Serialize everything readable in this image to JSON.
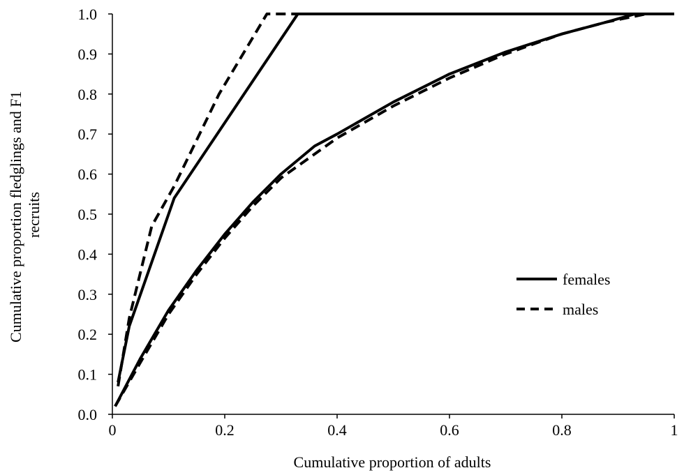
{
  "chart_data": {
    "type": "line",
    "title": "",
    "xlabel": "Cumulative proportion of adults",
    "ylabel": "Cumulative proportion fledglings and F1 recruits",
    "xlim": [
      0,
      1
    ],
    "ylim": [
      0,
      1
    ],
    "xticks": [
      0,
      0.2,
      0.4,
      0.6,
      0.8,
      1
    ],
    "xtick_labels": [
      "0",
      "0.2",
      "0.4",
      "0.6",
      "0.8",
      "1"
    ],
    "yticks": [
      0,
      0.1,
      0.2,
      0.3,
      0.4,
      0.5,
      0.6,
      0.7,
      0.8,
      0.9,
      1.0
    ],
    "ytick_labels": [
      "0.0",
      "0.1",
      "0.2",
      "0.3",
      "0.4",
      "0.5",
      "0.6",
      "0.7",
      "0.8",
      "0.9",
      "1.0"
    ],
    "grid": false,
    "legend": {
      "position": "right",
      "entries": [
        "females",
        "males"
      ]
    },
    "series": [
      {
        "name": "females",
        "group": "F1 recruits",
        "style": "solid",
        "x": [
          0.01,
          0.03,
          0.11,
          0.33,
          1.0
        ],
        "y": [
          0.08,
          0.22,
          0.54,
          1.0,
          1.0
        ]
      },
      {
        "name": "males",
        "group": "F1 recruits",
        "style": "dashed",
        "x": [
          0.01,
          0.03,
          0.07,
          0.11,
          0.19,
          0.275,
          0.33
        ],
        "y": [
          0.07,
          0.24,
          0.47,
          0.57,
          0.8,
          1.0,
          1.0
        ]
      },
      {
        "name": "females",
        "group": "fledglings",
        "style": "solid",
        "x": [
          0.005,
          0.05,
          0.1,
          0.15,
          0.2,
          0.25,
          0.3,
          0.36,
          0.4,
          0.5,
          0.6,
          0.7,
          0.8,
          0.88,
          0.93,
          1.0
        ],
        "y": [
          0.02,
          0.14,
          0.26,
          0.36,
          0.45,
          0.53,
          0.6,
          0.67,
          0.7,
          0.78,
          0.85,
          0.905,
          0.95,
          0.98,
          1.0,
          1.0
        ]
      },
      {
        "name": "males",
        "group": "fledglings",
        "style": "dashed",
        "x": [
          0.005,
          0.05,
          0.1,
          0.15,
          0.2,
          0.25,
          0.3,
          0.4,
          0.5,
          0.6,
          0.7,
          0.8,
          0.88,
          0.95
        ],
        "y": [
          0.02,
          0.13,
          0.25,
          0.35,
          0.44,
          0.52,
          0.59,
          0.69,
          0.77,
          0.84,
          0.9,
          0.95,
          0.98,
          1.0
        ]
      }
    ]
  }
}
